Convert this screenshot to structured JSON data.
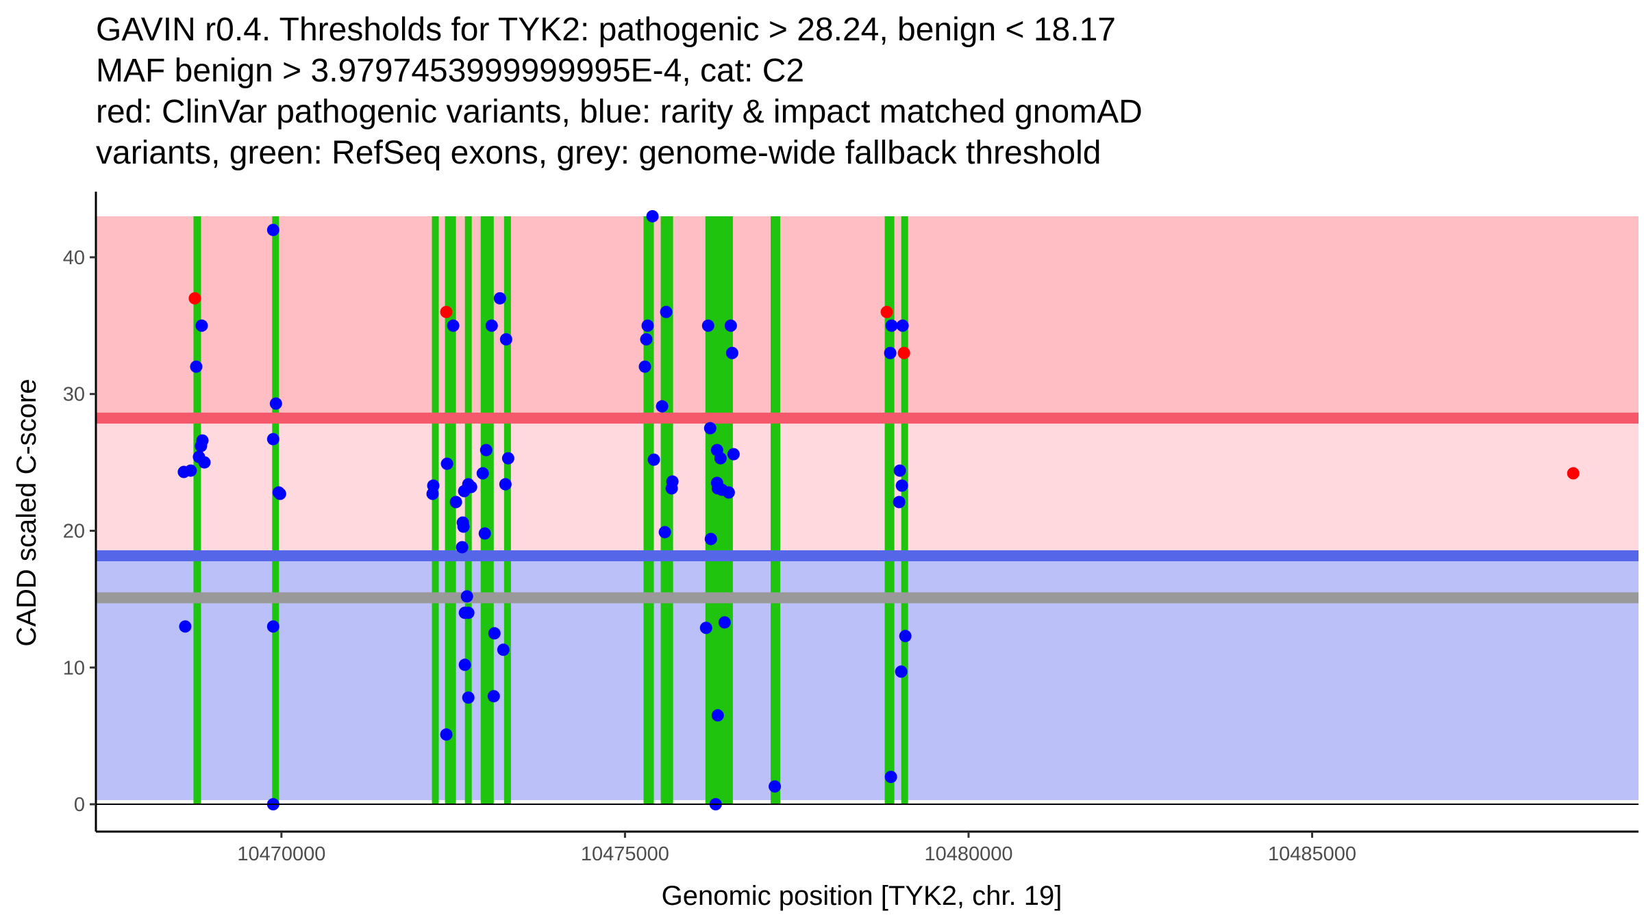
{
  "chart_data": {
    "type": "scatter",
    "title_lines": [
      "GAVIN r0.4. Thresholds for TYK2: pathogenic > 28.24, benign < 18.17",
      "MAF benign > 3.9797453999999995E-4, cat: C2",
      "red: ClinVar pathogenic variants, blue: rarity & impact matched gnomAD",
      "variants, green: RefSeq exons, grey: genome-wide fallback threshold"
    ],
    "xlabel": "Genomic position [TYK2, chr. 19]",
    "ylabel": "CADD scaled C-score",
    "xlim": [
      10467300,
      10489750
    ],
    "ylim": [
      -2,
      44.8
    ],
    "x_ticks": [
      {
        "value": 10470000,
        "label": "10470000"
      },
      {
        "value": 10475000,
        "label": "10475000"
      },
      {
        "value": 10480000,
        "label": "10480000"
      },
      {
        "value": 10485000,
        "label": "10485000"
      }
    ],
    "y_ticks": [
      {
        "value": 0,
        "label": "0"
      },
      {
        "value": 10,
        "label": "10"
      },
      {
        "value": 20,
        "label": "20"
      },
      {
        "value": 30,
        "label": "30"
      },
      {
        "value": 40,
        "label": "40"
      }
    ],
    "regions": [
      {
        "name": "pathogenic-region",
        "y0": 28.24,
        "y1": 43,
        "color": "#FFBEC4"
      },
      {
        "name": "vous-region",
        "y0": 18.17,
        "y1": 28.24,
        "color": "#FFD9DE"
      },
      {
        "name": "benign-region",
        "y0": 0.3,
        "y1": 18.17,
        "color": "#BBC1F8"
      }
    ],
    "thresholds": [
      {
        "name": "pathogenic-threshold",
        "y": 28.24,
        "color": "#F4586A"
      },
      {
        "name": "benign-threshold",
        "y": 18.17,
        "color": "#5566E8"
      },
      {
        "name": "fallback-threshold",
        "y": 15.1,
        "color": "#999999"
      }
    ],
    "x_range_end": 10489750,
    "exons": [
      [
        10468720,
        10468830
      ],
      [
        10469870,
        10469960
      ],
      [
        10472200,
        10472280
      ],
      [
        10472380,
        10472540
      ],
      [
        10472680,
        10472760
      ],
      [
        10472900,
        10473090
      ],
      [
        10473240,
        10473340
      ],
      [
        10475270,
        10475420
      ],
      [
        10475520,
        10475700
      ],
      [
        10476170,
        10476570
      ],
      [
        10477120,
        10477260
      ],
      [
        10478780,
        10478920
      ],
      [
        10479020,
        10479120
      ]
    ],
    "exon_y_range": [
      0,
      43
    ],
    "exon_color": "#1FC40F",
    "series": [
      {
        "name": "ClinVar pathogenic variants",
        "color": "#FF0000",
        "points": [
          {
            "x": 10468740,
            "y": 37
          },
          {
            "x": 10472400,
            "y": 36
          },
          {
            "x": 10478810,
            "y": 36
          },
          {
            "x": 10479060,
            "y": 33
          },
          {
            "x": 10488800,
            "y": 24.2
          }
        ]
      },
      {
        "name": "rarity & impact matched gnomAD variants",
        "color": "#0000FF",
        "points": [
          {
            "x": 10468580,
            "y": 24.3
          },
          {
            "x": 10468680,
            "y": 24.4
          },
          {
            "x": 10468600,
            "y": 13
          },
          {
            "x": 10468760,
            "y": 32
          },
          {
            "x": 10468840,
            "y": 35
          },
          {
            "x": 10468800,
            "y": 25.4
          },
          {
            "x": 10468850,
            "y": 26.6
          },
          {
            "x": 10468830,
            "y": 26.2
          },
          {
            "x": 10468880,
            "y": 25
          },
          {
            "x": 10469880,
            "y": 42
          },
          {
            "x": 10469920,
            "y": 29.3
          },
          {
            "x": 10469880,
            "y": 26.7
          },
          {
            "x": 10469960,
            "y": 22.8
          },
          {
            "x": 10469980,
            "y": 22.7
          },
          {
            "x": 10469880,
            "y": 13
          },
          {
            "x": 10469880,
            "y": 0
          },
          {
            "x": 10472210,
            "y": 23.3
          },
          {
            "x": 10472200,
            "y": 22.7
          },
          {
            "x": 10472410,
            "y": 24.9
          },
          {
            "x": 10472500,
            "y": 35
          },
          {
            "x": 10472540,
            "y": 22.1
          },
          {
            "x": 10472660,
            "y": 22.9
          },
          {
            "x": 10472720,
            "y": 23.4
          },
          {
            "x": 10472760,
            "y": 23.2
          },
          {
            "x": 10472640,
            "y": 20.6
          },
          {
            "x": 10472650,
            "y": 20.3
          },
          {
            "x": 10472630,
            "y": 18.8
          },
          {
            "x": 10472700,
            "y": 15.2
          },
          {
            "x": 10472670,
            "y": 14
          },
          {
            "x": 10472720,
            "y": 14
          },
          {
            "x": 10472670,
            "y": 10.2
          },
          {
            "x": 10472720,
            "y": 7.8
          },
          {
            "x": 10472400,
            "y": 5.1
          },
          {
            "x": 10472930,
            "y": 24.2
          },
          {
            "x": 10472980,
            "y": 25.9
          },
          {
            "x": 10472960,
            "y": 19.8
          },
          {
            "x": 10473060,
            "y": 35
          },
          {
            "x": 10473180,
            "y": 37
          },
          {
            "x": 10473270,
            "y": 34
          },
          {
            "x": 10473300,
            "y": 25.3
          },
          {
            "x": 10473260,
            "y": 23.4
          },
          {
            "x": 10473100,
            "y": 12.5
          },
          {
            "x": 10473230,
            "y": 11.3
          },
          {
            "x": 10473090,
            "y": 7.9
          },
          {
            "x": 10475330,
            "y": 35
          },
          {
            "x": 10475310,
            "y": 34
          },
          {
            "x": 10475290,
            "y": 32
          },
          {
            "x": 10475400,
            "y": 43
          },
          {
            "x": 10475600,
            "y": 36
          },
          {
            "x": 10475540,
            "y": 29.1
          },
          {
            "x": 10475420,
            "y": 25.2
          },
          {
            "x": 10475690,
            "y": 23.6
          },
          {
            "x": 10475680,
            "y": 23.1
          },
          {
            "x": 10475580,
            "y": 19.9
          },
          {
            "x": 10476210,
            "y": 35
          },
          {
            "x": 10476540,
            "y": 35
          },
          {
            "x": 10476560,
            "y": 33
          },
          {
            "x": 10476240,
            "y": 27.5
          },
          {
            "x": 10476340,
            "y": 25.9
          },
          {
            "x": 10476390,
            "y": 25.3
          },
          {
            "x": 10476580,
            "y": 25.6
          },
          {
            "x": 10476340,
            "y": 23.5
          },
          {
            "x": 10476350,
            "y": 23.1
          },
          {
            "x": 10476410,
            "y": 23
          },
          {
            "x": 10476510,
            "y": 22.8
          },
          {
            "x": 10476250,
            "y": 19.4
          },
          {
            "x": 10476180,
            "y": 12.9
          },
          {
            "x": 10476450,
            "y": 13.3
          },
          {
            "x": 10476350,
            "y": 6.5
          },
          {
            "x": 10476320,
            "y": 0
          },
          {
            "x": 10477180,
            "y": 1.3
          },
          {
            "x": 10478880,
            "y": 35
          },
          {
            "x": 10478860,
            "y": 33
          },
          {
            "x": 10478870,
            "y": 2
          },
          {
            "x": 10479040,
            "y": 35
          },
          {
            "x": 10479000,
            "y": 24.4
          },
          {
            "x": 10479030,
            "y": 23.3
          },
          {
            "x": 10478990,
            "y": 22.1
          },
          {
            "x": 10479080,
            "y": 12.3
          },
          {
            "x": 10479020,
            "y": 9.7
          }
        ]
      }
    ]
  }
}
